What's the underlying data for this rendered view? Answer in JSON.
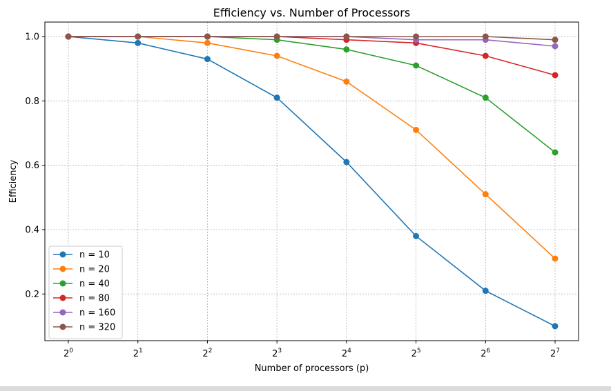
{
  "chart_data": {
    "type": "line",
    "title": "Efficiency vs. Number of Processors",
    "xlabel": "Number of processors (p)",
    "ylabel": "Efficiency",
    "x_scale": "log2",
    "x": [
      1,
      2,
      4,
      8,
      16,
      32,
      64,
      128
    ],
    "x_tick_labels": [
      {
        "base": "2",
        "exp": "0"
      },
      {
        "base": "2",
        "exp": "1"
      },
      {
        "base": "2",
        "exp": "2"
      },
      {
        "base": "2",
        "exp": "3"
      },
      {
        "base": "2",
        "exp": "4"
      },
      {
        "base": "2",
        "exp": "5"
      },
      {
        "base": "2",
        "exp": "6"
      },
      {
        "base": "2",
        "exp": "7"
      }
    ],
    "y_ticks": [
      "0.2",
      "0.4",
      "0.6",
      "0.8",
      "1.0"
    ],
    "ylim": [
      0.07,
      1.04
    ],
    "grid": true,
    "legend_position": "lower-left",
    "series": [
      {
        "name": "n = 10",
        "color": "#1f77b4",
        "values": [
          1.0,
          0.98,
          0.93,
          0.81,
          0.61,
          0.38,
          0.21,
          0.1
        ]
      },
      {
        "name": "n = 20",
        "color": "#ff7f0e",
        "values": [
          1.0,
          1.0,
          0.98,
          0.94,
          0.86,
          0.71,
          0.51,
          0.31
        ]
      },
      {
        "name": "n = 40",
        "color": "#2ca02c",
        "values": [
          1.0,
          1.0,
          1.0,
          0.99,
          0.96,
          0.91,
          0.81,
          0.64
        ]
      },
      {
        "name": "n = 80",
        "color": "#d62728",
        "values": [
          1.0,
          1.0,
          1.0,
          1.0,
          0.99,
          0.98,
          0.94,
          0.88
        ]
      },
      {
        "name": "n = 160",
        "color": "#9467bd",
        "values": [
          1.0,
          1.0,
          1.0,
          1.0,
          1.0,
          0.99,
          0.99,
          0.97
        ]
      },
      {
        "name": "n = 320",
        "color": "#8c564b",
        "values": [
          1.0,
          1.0,
          1.0,
          1.0,
          1.0,
          1.0,
          1.0,
          0.99
        ]
      }
    ]
  }
}
